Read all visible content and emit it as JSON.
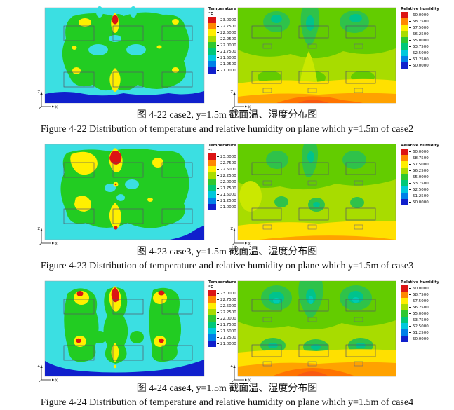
{
  "figures": [
    {
      "number": "4-22",
      "case": "case2",
      "plane": "y=1.5m",
      "caption_zh": "图 4-22  case2, y=1.5m 截面温、湿度分布图",
      "caption_en": "Figure 4-22 Distribution of temperature and relative humidity on plane which y=1.5m of case2"
    },
    {
      "number": "4-23",
      "case": "case3",
      "plane": "y=1.5m",
      "caption_zh": "图 4-23  case3, y=1.5m 截面温、湿度分布图",
      "caption_en": "Figure 4-23 Distribution of temperature and relative humidity on plane which y=1.5m of case3"
    },
    {
      "number": "4-24",
      "case": "case4",
      "plane": "y=1.5m",
      "caption_zh": "图 4-24  case4, y=1.5m 截面温、湿度分布图",
      "caption_en": "Figure 4-24 Distribution of temperature and relative humidity on plane which y=1.5m of case4"
    }
  ],
  "legends": {
    "temperature": {
      "title": "Temperature",
      "subtitle": "°C",
      "labels": [
        "23.0000",
        "22.7500",
        "22.5000",
        "22.2500",
        "22.0000",
        "21.7500",
        "21.5000",
        "21.2500",
        "21.0000"
      ],
      "colors": [
        "#DC1414",
        "#FF8800",
        "#FFEE00",
        "#A8DC00",
        "#2FC82F",
        "#00C878",
        "#00C8DC",
        "#0080E8",
        "#1020CC"
      ]
    },
    "humidity": {
      "title": "Relative humidity",
      "subtitle": "",
      "labels": [
        "60.0000",
        "58.7500",
        "57.5000",
        "56.2500",
        "55.0000",
        "53.7500",
        "52.5000",
        "51.2500",
        "50.0000"
      ],
      "colors": [
        "#DC1414",
        "#FF8800",
        "#FFEE00",
        "#A8DC00",
        "#2FC82F",
        "#00C878",
        "#00C8DC",
        "#0080E8",
        "#1020CC"
      ]
    }
  },
  "axis_indicator": {
    "vertical_label": "Z",
    "horizontal_label": "X"
  },
  "chart_data": [
    {
      "type": "heatmap",
      "subtype": "filled-contour",
      "figure": "4-22",
      "case": "case2",
      "variable": "Temperature",
      "units": "°C",
      "plane": "y=1.5m",
      "range": [
        21.0,
        23.0
      ],
      "legend_ticks": [
        23.0,
        22.75,
        22.5,
        22.25,
        22.0,
        21.75,
        21.5,
        21.25,
        21.0
      ],
      "description": "Cyan field (~21.5°C) with a large central green zone (~22°C) over six outlined occupied zones; yellow warm spots (~22.5°C) above zones; single red peak (~23°C) at top centre; large warm teardrop at bottom centre; dark-blue cold band (~21°C) along the floor edge."
    },
    {
      "type": "heatmap",
      "subtype": "filled-contour",
      "figure": "4-22",
      "case": "case2",
      "variable": "Relative humidity",
      "units": "%",
      "plane": "y=1.5m",
      "range": [
        50.0,
        60.0
      ],
      "legend_ticks": [
        60.0,
        58.75,
        57.5,
        56.25,
        55.0,
        53.75,
        52.5,
        51.25,
        50.0
      ],
      "description": "Yellow-green field (~56%); darker green plumes (~55%) descending over the three upper zones; yellow band (~57.5%) across the lower third; orange layer (~58-59%) at the floor with deepest orange at bottom centre."
    },
    {
      "type": "heatmap",
      "subtype": "filled-contour",
      "figure": "4-23",
      "case": "case3",
      "variable": "Temperature",
      "units": "°C",
      "plane": "y=1.5m",
      "range": [
        21.0,
        23.0
      ],
      "legend_ticks": [
        23.0,
        22.75,
        22.5,
        22.25,
        22.0,
        21.75,
        21.5,
        21.25,
        21.0
      ],
      "description": "Cyan field with wide green core; large yellow patches at top-left and top-centre, red maximum (~23°C) at top centre; warm teardrop with small red spot at bottom centre; dark-blue cold wedge (~21°C) in the bottom-right corner."
    },
    {
      "type": "heatmap",
      "subtype": "filled-contour",
      "figure": "4-23",
      "case": "case3",
      "variable": "Relative humidity",
      "units": "%",
      "plane": "y=1.5m",
      "range": [
        50.0,
        60.0
      ],
      "legend_ticks": [
        60.0,
        58.75,
        57.5,
        56.25,
        55.0,
        53.75,
        52.5,
        51.25,
        50.0
      ],
      "description": "Yellow-green field; moderate darker-green plumes over upper zones and patches over lower zones; yellow band (~57.5%) along the bottom with only a thin orange streak at the floor edge."
    },
    {
      "type": "heatmap",
      "subtype": "filled-contour",
      "figure": "4-24",
      "case": "case4",
      "variable": "Temperature",
      "units": "°C",
      "plane": "y=1.5m",
      "range": [
        21.0,
        23.0
      ],
      "legend_ticks": [
        23.0,
        22.75,
        22.5,
        22.25,
        22.0,
        21.75,
        21.5,
        21.25,
        21.0
      ],
      "description": "Cyan field with three vertical green lobes; yellow patches with red cores (~23°C) above all upper zones and beside both middle side zones; yellow diamond at bottom centre; continuous dark-blue cold band (~21°C) along the floor."
    },
    {
      "type": "heatmap",
      "subtype": "filled-contour",
      "figure": "4-24",
      "case": "case4",
      "variable": "Relative humidity",
      "units": "%",
      "plane": "y=1.5m",
      "range": [
        50.0,
        60.0
      ],
      "legend_ticks": [
        60.0,
        58.75,
        57.5,
        56.25,
        55.0,
        53.75,
        52.5,
        51.25,
        50.0
      ],
      "description": "Yellow-green field; strong dark-green/teal plumes (~53-55%) over all six zones; broad yellow band then orange layer (~58-60%) across the floor with a deep orange-red hump at bottom centre."
    }
  ]
}
